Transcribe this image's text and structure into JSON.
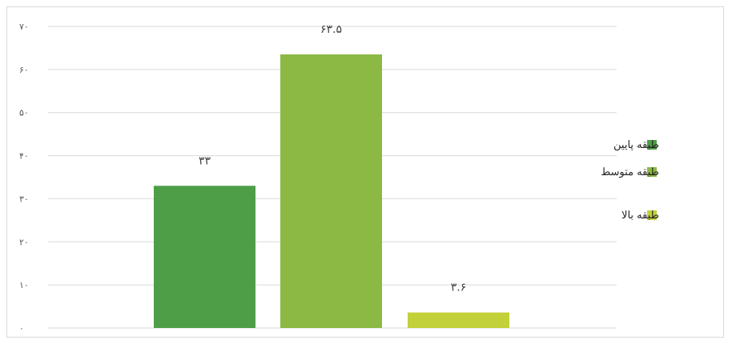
{
  "chart_data": {
    "type": "bar",
    "categories": [
      "طبقه پایین",
      "طبقه متوسط",
      "طبقه بالا"
    ],
    "values": [
      33,
      63.5,
      3.6
    ],
    "data_labels": [
      "۳۳",
      "۶۳.۵",
      "۳.۶"
    ],
    "ylim": [
      0,
      70
    ],
    "yticks": [
      0,
      10,
      20,
      30,
      40,
      50,
      60,
      70
    ],
    "ytick_labels": [
      "۰",
      "۱۰",
      "۲۰",
      "۳۰",
      "۴۰",
      "۵۰",
      "۶۰",
      "۷۰"
    ],
    "colors": [
      "#4e9e47",
      "#8cb943",
      "#c2d13a"
    ],
    "gridline_color": "#d9d9d9",
    "grid": true,
    "legend_position": "right",
    "title": "",
    "xlabel": "",
    "ylabel": ""
  }
}
